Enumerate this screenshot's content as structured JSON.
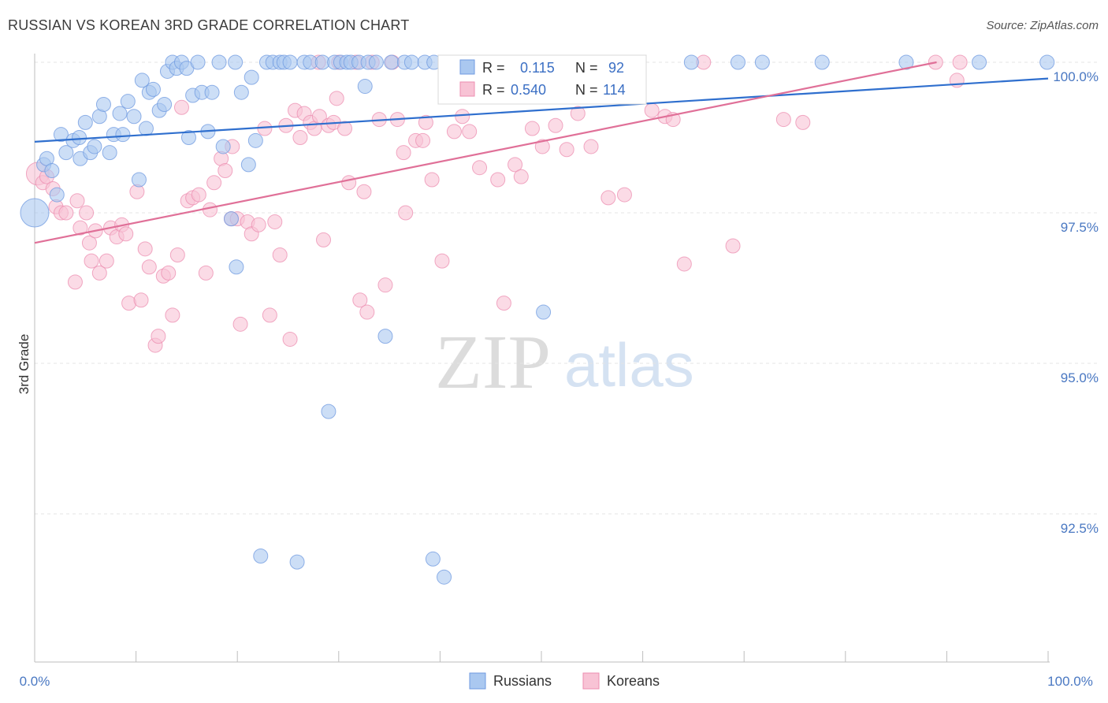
{
  "header": {
    "title": "RUSSIAN VS KOREAN 3RD GRADE CORRELATION CHART",
    "source": "Source: ZipAtlas.com"
  },
  "watermark": {
    "zip": "ZIP",
    "atlas": "atlas"
  },
  "legend": {
    "r_label": "R =",
    "n_label": "N =",
    "russians": {
      "r": "0.115",
      "n": "92"
    },
    "koreans": {
      "r": "0.540",
      "n": "114"
    }
  },
  "colors": {
    "russians_fill": "#aac8f0",
    "russians_stroke": "#6f9ae0",
    "russians_line": "#2f6fce",
    "koreans_fill": "#f8c3d5",
    "koreans_stroke": "#ec8eb0",
    "koreans_line": "#e07098",
    "axis_text": "#4a78c2"
  },
  "chart_data": {
    "type": "scatter",
    "title": "RUSSIAN VS KOREAN 3RD GRADE CORRELATION CHART",
    "xlabel": "",
    "ylabel": "3rd Grade",
    "xlim": [
      0,
      100
    ],
    "ylim": [
      90.0,
      100.4
    ],
    "x_tick_labels": [
      "0.0%",
      "100.0%"
    ],
    "y_ticks": [
      {
        "value": 100.0,
        "label": "100.0%"
      },
      {
        "value": 97.5,
        "label": "97.5%"
      },
      {
        "value": 95.0,
        "label": "95.0%"
      },
      {
        "value": 92.5,
        "label": "92.5%"
      }
    ],
    "series": [
      {
        "name": "Russians",
        "r": 0.115,
        "n": 92,
        "trend": {
          "x": [
            0,
            100
          ],
          "y": [
            98.68,
            99.73
          ]
        },
        "points": [
          [
            0.0,
            97.5,
            2
          ],
          [
            0.9,
            98.3,
            1
          ],
          [
            1.2,
            98.4,
            1
          ],
          [
            1.7,
            98.2,
            1
          ],
          [
            2.2,
            97.8,
            1
          ],
          [
            2.6,
            98.8,
            1
          ],
          [
            3.1,
            98.5,
            1
          ],
          [
            3.8,
            98.7,
            1
          ],
          [
            4.4,
            98.75,
            1
          ],
          [
            4.5,
            98.4,
            1
          ],
          [
            5.0,
            99.0,
            1
          ],
          [
            5.5,
            98.5,
            1
          ],
          [
            5.9,
            98.6,
            1
          ],
          [
            6.4,
            99.1,
            1
          ],
          [
            6.8,
            99.3,
            1
          ],
          [
            7.4,
            98.5,
            1
          ],
          [
            7.8,
            98.8,
            1
          ],
          [
            8.4,
            99.15,
            1
          ],
          [
            8.7,
            98.8,
            1
          ],
          [
            9.2,
            99.35,
            1
          ],
          [
            9.8,
            99.1,
            1
          ],
          [
            10.3,
            98.05,
            1
          ],
          [
            10.6,
            99.7,
            1
          ],
          [
            11.0,
            98.9,
            1
          ],
          [
            11.3,
            99.5,
            1
          ],
          [
            11.7,
            99.55,
            1
          ],
          [
            12.3,
            99.2,
            1
          ],
          [
            12.8,
            99.3,
            1
          ],
          [
            13.1,
            99.85,
            1
          ],
          [
            13.6,
            100.0,
            1
          ],
          [
            14.0,
            99.9,
            1
          ],
          [
            14.5,
            100.0,
            1
          ],
          [
            15.0,
            99.9,
            1
          ],
          [
            15.2,
            98.75,
            1
          ],
          [
            15.6,
            99.45,
            1
          ],
          [
            16.1,
            100.0,
            1
          ],
          [
            16.5,
            99.5,
            1
          ],
          [
            17.1,
            98.85,
            1
          ],
          [
            17.5,
            99.5,
            1
          ],
          [
            18.2,
            100.0,
            1
          ],
          [
            18.6,
            98.6,
            1
          ],
          [
            19.4,
            97.4,
            1
          ],
          [
            19.8,
            100.0,
            1
          ],
          [
            19.9,
            96.6,
            1
          ],
          [
            20.4,
            99.5,
            1
          ],
          [
            21.1,
            98.3,
            1
          ],
          [
            21.4,
            99.75,
            1
          ],
          [
            21.8,
            98.7,
            1
          ],
          [
            22.3,
            91.8,
            1
          ],
          [
            22.9,
            100.0,
            1
          ],
          [
            23.5,
            100.0,
            1
          ],
          [
            24.2,
            100.0,
            1
          ],
          [
            24.6,
            100.0,
            1
          ],
          [
            25.2,
            100.0,
            1
          ],
          [
            25.9,
            91.7,
            1
          ],
          [
            26.6,
            100.0,
            1
          ],
          [
            27.2,
            100.0,
            1
          ],
          [
            28.4,
            100.0,
            1
          ],
          [
            29.0,
            94.2,
            1
          ],
          [
            29.6,
            100.0,
            1
          ],
          [
            30.2,
            100.0,
            1
          ],
          [
            30.8,
            100.0,
            1
          ],
          [
            31.2,
            100.0,
            1
          ],
          [
            32.0,
            100.0,
            1
          ],
          [
            32.6,
            99.6,
            1
          ],
          [
            32.9,
            100.0,
            1
          ],
          [
            33.7,
            100.0,
            1
          ],
          [
            34.6,
            95.45,
            1
          ],
          [
            35.2,
            100.0,
            1
          ],
          [
            36.5,
            100.0,
            1
          ],
          [
            37.2,
            100.0,
            1
          ],
          [
            38.5,
            100.0,
            1
          ],
          [
            39.4,
            100.0,
            1
          ],
          [
            39.3,
            91.75,
            1
          ],
          [
            40.4,
            91.45,
            1
          ],
          [
            41.9,
            100.0,
            1
          ],
          [
            45.4,
            100.0,
            1
          ],
          [
            47.0,
            100.0,
            1
          ],
          [
            50.2,
            95.85,
            1
          ],
          [
            56.8,
            100.0,
            1
          ],
          [
            64.8,
            100.0,
            1
          ],
          [
            69.4,
            100.0,
            1
          ],
          [
            71.8,
            100.0,
            1
          ],
          [
            77.7,
            100.0,
            1
          ],
          [
            86.0,
            100.0,
            1
          ],
          [
            93.2,
            100.0,
            1
          ],
          [
            99.9,
            100.0,
            1
          ],
          [
            43.0,
            100.0,
            1
          ]
        ]
      },
      {
        "name": "Koreans",
        "r": 0.54,
        "n": 114,
        "trend": {
          "x": [
            0,
            89.0
          ],
          "y": [
            97.0,
            100.0
          ]
        },
        "points": [
          [
            0.3,
            98.15,
            1.6
          ],
          [
            0.8,
            98.0,
            1
          ],
          [
            1.2,
            98.1,
            1
          ],
          [
            1.8,
            97.9,
            1
          ],
          [
            2.1,
            97.6,
            1
          ],
          [
            2.6,
            97.5,
            1
          ],
          [
            3.1,
            97.5,
            1
          ],
          [
            4.0,
            96.35,
            1
          ],
          [
            4.2,
            97.7,
            1
          ],
          [
            4.5,
            97.25,
            1
          ],
          [
            5.1,
            97.5,
            1
          ],
          [
            5.4,
            97.0,
            1
          ],
          [
            5.6,
            96.7,
            1
          ],
          [
            6.0,
            97.2,
            1
          ],
          [
            6.4,
            96.5,
            1
          ],
          [
            7.1,
            96.7,
            1
          ],
          [
            7.5,
            97.25,
            1
          ],
          [
            8.1,
            97.1,
            1
          ],
          [
            8.6,
            97.3,
            1
          ],
          [
            9.0,
            97.15,
            1
          ],
          [
            9.3,
            96.0,
            1
          ],
          [
            10.1,
            97.85,
            1
          ],
          [
            10.5,
            96.05,
            1
          ],
          [
            10.9,
            96.9,
            1
          ],
          [
            11.3,
            96.6,
            1
          ],
          [
            11.9,
            95.3,
            1
          ],
          [
            12.2,
            95.45,
            1
          ],
          [
            12.7,
            96.45,
            1
          ],
          [
            13.2,
            96.5,
            1
          ],
          [
            13.6,
            95.8,
            1
          ],
          [
            14.1,
            96.8,
            1
          ],
          [
            14.5,
            99.25,
            1
          ],
          [
            15.1,
            97.7,
            1
          ],
          [
            15.6,
            97.75,
            1
          ],
          [
            16.2,
            97.8,
            1
          ],
          [
            16.9,
            96.5,
            1
          ],
          [
            17.3,
            97.55,
            1
          ],
          [
            17.7,
            98.0,
            1
          ],
          [
            18.4,
            98.4,
            1
          ],
          [
            18.8,
            98.2,
            1
          ],
          [
            19.4,
            97.4,
            1
          ],
          [
            19.5,
            98.6,
            1
          ],
          [
            20.0,
            97.4,
            1
          ],
          [
            20.3,
            95.65,
            1
          ],
          [
            21.0,
            97.35,
            1
          ],
          [
            21.4,
            97.15,
            1
          ],
          [
            22.1,
            97.3,
            1
          ],
          [
            22.7,
            98.9,
            1
          ],
          [
            23.2,
            95.8,
            1
          ],
          [
            23.7,
            97.35,
            1
          ],
          [
            24.2,
            96.8,
            1
          ],
          [
            24.8,
            98.95,
            1
          ],
          [
            25.2,
            95.4,
            1
          ],
          [
            25.7,
            99.2,
            1
          ],
          [
            26.2,
            98.75,
            1
          ],
          [
            26.6,
            99.15,
            1
          ],
          [
            27.2,
            99.0,
            1
          ],
          [
            27.6,
            98.9,
            1
          ],
          [
            28.1,
            99.1,
            1
          ],
          [
            28.5,
            97.05,
            1
          ],
          [
            29.0,
            98.95,
            1
          ],
          [
            29.5,
            99.0,
            1
          ],
          [
            29.8,
            99.4,
            1
          ],
          [
            30.6,
            98.9,
            1
          ],
          [
            31.0,
            98.0,
            1
          ],
          [
            31.7,
            100.0,
            1
          ],
          [
            32.1,
            96.05,
            1
          ],
          [
            32.5,
            97.85,
            1
          ],
          [
            32.8,
            95.85,
            1
          ],
          [
            33.3,
            100.0,
            1
          ],
          [
            34.0,
            99.05,
            1
          ],
          [
            34.6,
            96.3,
            1
          ],
          [
            35.3,
            100.0,
            1
          ],
          [
            35.8,
            99.05,
            1
          ],
          [
            36.4,
            98.5,
            1
          ],
          [
            36.6,
            97.5,
            1
          ],
          [
            37.6,
            98.7,
            1
          ],
          [
            38.3,
            98.7,
            1
          ],
          [
            38.6,
            99.0,
            1
          ],
          [
            39.2,
            98.05,
            1
          ],
          [
            40.2,
            96.7,
            1
          ],
          [
            40.8,
            100.0,
            1
          ],
          [
            41.4,
            98.85,
            1
          ],
          [
            42.2,
            99.1,
            1
          ],
          [
            42.9,
            98.85,
            1
          ],
          [
            43.9,
            98.25,
            1
          ],
          [
            45.7,
            98.05,
            1
          ],
          [
            46.3,
            96.0,
            1
          ],
          [
            47.4,
            98.3,
            1
          ],
          [
            48.0,
            98.1,
            1
          ],
          [
            49.1,
            98.9,
            1
          ],
          [
            50.1,
            98.6,
            1
          ],
          [
            51.4,
            98.95,
            1
          ],
          [
            52.5,
            98.55,
            1
          ],
          [
            53.6,
            99.15,
            1
          ],
          [
            54.9,
            98.6,
            1
          ],
          [
            56.6,
            97.75,
            1
          ],
          [
            57.3,
            100.0,
            1
          ],
          [
            58.2,
            97.8,
            1
          ],
          [
            60.9,
            99.2,
            1
          ],
          [
            62.2,
            99.1,
            1
          ],
          [
            63.0,
            99.05,
            1
          ],
          [
            64.1,
            96.65,
            1
          ],
          [
            66.0,
            100.0,
            1
          ],
          [
            68.9,
            96.95,
            1
          ],
          [
            73.9,
            99.05,
            1
          ],
          [
            75.8,
            99.0,
            1
          ],
          [
            88.9,
            100.0,
            1
          ],
          [
            91.3,
            100.0,
            1
          ],
          [
            91.0,
            99.7,
            1
          ],
          [
            44.2,
            100.0,
            1
          ],
          [
            52.0,
            100.0,
            1
          ],
          [
            30.0,
            100.0,
            1
          ],
          [
            28.0,
            100.0,
            1
          ]
        ]
      }
    ],
    "legend": [
      "Russians",
      "Koreans"
    ],
    "legend_position": "bottom-center"
  }
}
